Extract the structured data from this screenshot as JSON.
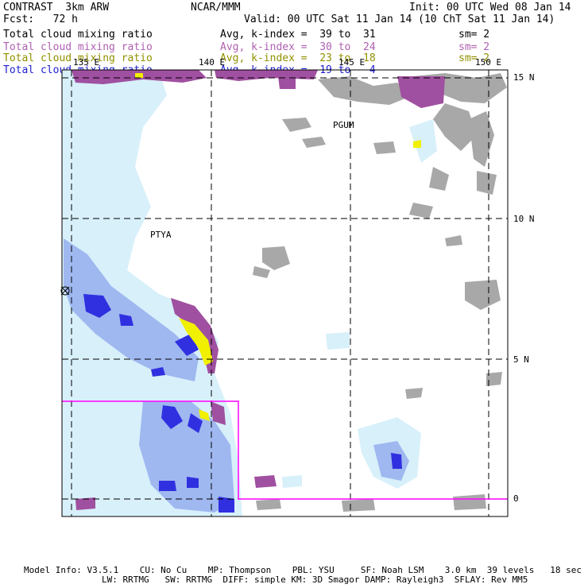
{
  "header": {
    "model": "CONTRAST  3km ARW",
    "center": "NCAR/MMM",
    "init": "Init: 00 UTC Wed 08 Jan 14",
    "fcst": "Fcst:   72 h",
    "valid": "Valid: 00 UTC Sat 11 Jan 14 (10 ChT Sat 11 Jan 14)"
  },
  "legend": [
    {
      "field": "Total cloud mixing ratio",
      "avg": "Avg, k-index =  39 to  31",
      "sm": "sm= 2",
      "color": "#000000"
    },
    {
      "field": "Total cloud mixing ratio",
      "avg": "Avg, k-index =  30 to  24",
      "sm": "sm= 2",
      "color": "#b060b0"
    },
    {
      "field": "Total cloud mixing ratio",
      "avg": "Avg, k-index =  23 to  18",
      "sm": "sm= 2",
      "color": "#909000"
    },
    {
      "field": "Total cloud mixing ratio",
      "avg": "Avg, k-index =  19 to   4",
      "sm": "",
      "color": "#2020d0"
    }
  ],
  "map": {
    "lon_labels": [
      "135 E",
      "140 E",
      "145 E",
      "150 E"
    ],
    "lat_labels": [
      "15 N",
      "10 N",
      "5 N",
      "0"
    ],
    "stations": [
      "PGUM",
      "PTYA"
    ],
    "colors": {
      "level_39_31": "#a8a8a8",
      "level_30_24": "#a050a0",
      "level_23_18": "#f0f000",
      "level_19_4_light": "#d8f0fa",
      "level_19_4_mid": "#9fb8f0",
      "level_19_4_dark": "#3030e0",
      "inset_box": "#ff00ff"
    }
  },
  "footer": {
    "line1": "Model Info: V3.5.1    CU: No Cu    MP: Thompson    PBL: YSU     SF: Noah LSM    3.0 km  39 levels   18 sec",
    "line2": "LW: RRTMG   SW: RRTMG  DIFF: simple KM: 3D Smagor DAMP: Rayleigh3  SFLAY: Rev MM5"
  }
}
